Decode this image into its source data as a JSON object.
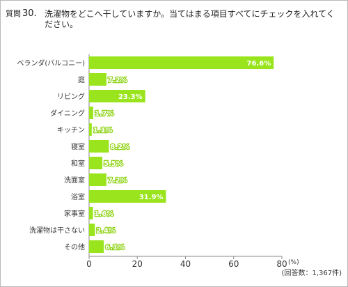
{
  "question": {
    "prefix": "質問",
    "number": "30.",
    "text": "洗濯物をどこへ干していますか。当てはまる項目すべてにチェックを入れてください。"
  },
  "chart_data": {
    "type": "bar",
    "orientation": "horizontal",
    "categories": [
      "ベランダ(バルコニー)",
      "庭",
      "リビング",
      "ダイニング",
      "キッチン",
      "寝室",
      "和室",
      "洗面室",
      "浴室",
      "家事室",
      "洗濯物は干さない",
      "その他"
    ],
    "values": [
      76.6,
      7.2,
      23.3,
      1.7,
      1.1,
      8.2,
      5.5,
      7.2,
      31.9,
      1.6,
      2.4,
      6.1
    ],
    "value_labels": [
      "76.6%",
      "7.2%",
      "23.3%",
      "1.7%",
      "1.1%",
      "8.2%",
      "5.5%",
      "7.2%",
      "31.9%",
      "1.6%",
      "2.4%",
      "6.1%"
    ],
    "xlim": [
      0,
      80
    ],
    "x_ticks": [
      0,
      20,
      40,
      60,
      80
    ],
    "x_unit": "(%)",
    "sample_note": "(回答数：1,367件)",
    "bar_color": "#99e41c",
    "grid": false
  }
}
